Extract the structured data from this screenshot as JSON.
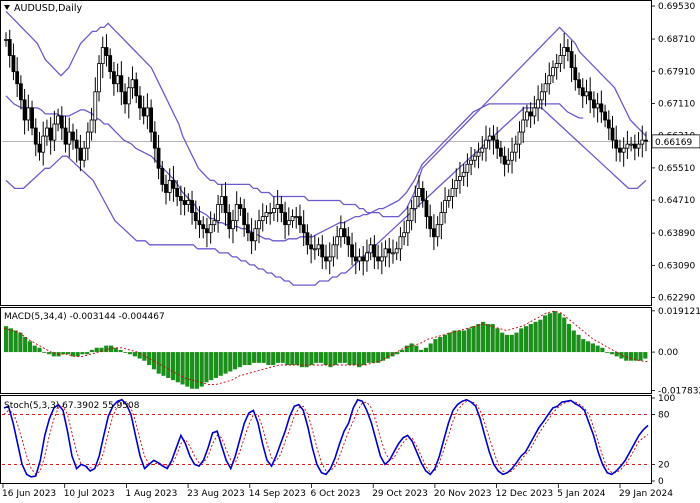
{
  "window": {
    "symbol_label": "AUDUSD,Daily",
    "menu_icon": "triangle-down-icon"
  },
  "colors": {
    "background": "#ffffff",
    "candle": "#000000",
    "bollinger": "#6a5acd",
    "macd_hist": "#1a8f1a",
    "macd_signal": "#cc0000",
    "stoch_main": "#0000cc",
    "stoch_signal": "#cc0000",
    "level_line": "#cc0000",
    "grid_separator": "#000000",
    "price_line": "#9a9a9a"
  },
  "price_panel": {
    "current_price_label": "0.66169",
    "current_price": 0.66169,
    "y_ticks": [
      "0.69530",
      "0.68710",
      "0.67910",
      "0.67110",
      "0.66310",
      "0.65510",
      "0.64710",
      "0.63890",
      "0.63090",
      "0.62290"
    ],
    "ylim": [
      0.6213,
      0.6963
    ]
  },
  "macd_panel": {
    "label": "MACD(5,34,4) -0.003144 -0.004467",
    "y_ticks": [
      "0.019121",
      "0.00",
      "-0.017832"
    ],
    "ylim": [
      -0.0185,
      0.0195
    ]
  },
  "stoch_panel": {
    "label": "Stoch(5,3,3) 67.3902 55.9508",
    "y_ticks": [
      "100",
      "80",
      "20",
      "0"
    ],
    "levels": [
      80,
      20
    ]
  },
  "x_ticks": [
    "16 Jun 2023",
    "10 Jul 2023",
    "1 Aug 2023",
    "23 Aug 2023",
    "14 Sep 2023",
    "6 Oct 2023",
    "29 Oct 2023",
    "20 Nov 2023",
    "12 Dec 2023",
    "5 Jan 2024",
    "29 Jan 2024"
  ],
  "chart_data": [
    {
      "type": "candlestick",
      "title": "AUDUSD,Daily",
      "indicators": [
        "Bollinger Bands"
      ],
      "x_start": "16 Jun 2023",
      "x_end": "29 Jan 2024",
      "close": [
        0.687,
        0.683,
        0.679,
        0.676,
        0.672,
        0.667,
        0.67,
        0.665,
        0.661,
        0.659,
        0.663,
        0.665,
        0.662,
        0.666,
        0.668,
        0.665,
        0.661,
        0.664,
        0.662,
        0.66,
        0.657,
        0.66,
        0.664,
        0.667,
        0.674,
        0.681,
        0.685,
        0.683,
        0.679,
        0.676,
        0.678,
        0.674,
        0.671,
        0.675,
        0.677,
        0.673,
        0.67,
        0.668,
        0.67,
        0.664,
        0.66,
        0.655,
        0.651,
        0.649,
        0.652,
        0.65,
        0.648,
        0.647,
        0.646,
        0.647,
        0.644,
        0.642,
        0.641,
        0.64,
        0.639,
        0.641,
        0.642,
        0.646,
        0.648,
        0.644,
        0.64,
        0.642,
        0.646,
        0.645,
        0.641,
        0.639,
        0.637,
        0.64,
        0.642,
        0.643,
        0.644,
        0.644,
        0.645,
        0.646,
        0.644,
        0.641,
        0.642,
        0.643,
        0.643,
        0.641,
        0.639,
        0.636,
        0.635,
        0.635,
        0.636,
        0.633,
        0.632,
        0.633,
        0.636,
        0.638,
        0.64,
        0.638,
        0.636,
        0.633,
        0.632,
        0.633,
        0.632,
        0.634,
        0.636,
        0.633,
        0.632,
        0.633,
        0.635,
        0.634,
        0.634,
        0.635,
        0.638,
        0.639,
        0.642,
        0.645,
        0.648,
        0.65,
        0.647,
        0.643,
        0.64,
        0.638,
        0.641,
        0.644,
        0.647,
        0.648,
        0.65,
        0.652,
        0.653,
        0.654,
        0.656,
        0.657,
        0.658,
        0.659,
        0.66,
        0.662,
        0.663,
        0.662,
        0.66,
        0.658,
        0.656,
        0.657,
        0.659,
        0.661,
        0.664,
        0.667,
        0.669,
        0.668,
        0.67,
        0.672,
        0.674,
        0.676,
        0.678,
        0.68,
        0.681,
        0.683,
        0.685,
        0.684,
        0.68,
        0.677,
        0.675,
        0.673,
        0.674,
        0.672,
        0.67,
        0.671,
        0.669,
        0.667,
        0.665,
        0.662,
        0.66,
        0.659,
        0.66,
        0.661,
        0.661,
        0.66,
        0.661,
        0.662,
        0.6617
      ],
      "bb_upper": [
        0.694,
        0.693,
        0.692,
        0.691,
        0.69,
        0.689,
        0.688,
        0.687,
        0.686,
        0.684,
        0.682,
        0.681,
        0.68,
        0.679,
        0.678,
        0.679,
        0.68,
        0.682,
        0.684,
        0.686,
        0.687,
        0.688,
        0.689,
        0.689,
        0.69,
        0.69,
        0.691,
        0.69,
        0.689,
        0.688,
        0.687,
        0.686,
        0.685,
        0.684,
        0.683,
        0.682,
        0.681,
        0.68,
        0.678,
        0.676,
        0.674,
        0.672,
        0.67,
        0.668,
        0.666,
        0.663,
        0.661,
        0.659,
        0.657,
        0.655,
        0.654,
        0.653,
        0.652,
        0.652,
        0.651,
        0.651,
        0.651,
        0.651,
        0.651,
        0.651,
        0.651,
        0.651,
        0.651,
        0.65,
        0.65,
        0.649,
        0.649,
        0.649,
        0.648,
        0.648,
        0.648,
        0.648,
        0.648,
        0.648,
        0.648,
        0.648,
        0.648,
        0.647,
        0.647,
        0.647,
        0.647,
        0.647,
        0.647,
        0.647,
        0.647,
        0.647,
        0.646,
        0.646,
        0.646,
        0.646,
        0.645,
        0.645,
        0.644,
        0.644,
        0.644,
        0.644,
        0.643,
        0.643,
        0.643,
        0.643,
        0.643,
        0.644,
        0.645,
        0.647,
        0.649,
        0.652,
        0.655,
        0.656,
        0.657,
        0.658,
        0.659,
        0.66,
        0.661,
        0.662,
        0.663,
        0.664,
        0.665,
        0.666,
        0.667,
        0.668,
        0.669,
        0.67,
        0.671,
        0.672,
        0.673,
        0.674,
        0.675,
        0.676,
        0.677,
        0.678,
        0.679,
        0.68,
        0.681,
        0.682,
        0.683,
        0.684,
        0.685,
        0.686,
        0.687,
        0.688,
        0.689,
        0.69,
        0.689,
        0.688,
        0.687,
        0.686,
        0.684,
        0.683,
        0.682,
        0.681,
        0.68,
        0.679,
        0.678,
        0.677,
        0.676,
        0.675,
        0.673,
        0.671,
        0.669,
        0.667,
        0.666,
        0.665,
        0.664,
        0.663
      ],
      "bb_lower": [
        0.652,
        0.651,
        0.65,
        0.65,
        0.65,
        0.651,
        0.652,
        0.653,
        0.654,
        0.655,
        0.655,
        0.656,
        0.657,
        0.658,
        0.658,
        0.657,
        0.656,
        0.655,
        0.654,
        0.653,
        0.652,
        0.65,
        0.648,
        0.646,
        0.644,
        0.642,
        0.641,
        0.64,
        0.639,
        0.638,
        0.637,
        0.637,
        0.637,
        0.636,
        0.636,
        0.636,
        0.636,
        0.636,
        0.636,
        0.636,
        0.636,
        0.636,
        0.636,
        0.636,
        0.635,
        0.635,
        0.635,
        0.635,
        0.635,
        0.634,
        0.634,
        0.634,
        0.633,
        0.633,
        0.632,
        0.632,
        0.631,
        0.631,
        0.63,
        0.63,
        0.629,
        0.629,
        0.628,
        0.628,
        0.627,
        0.627,
        0.626,
        0.626,
        0.626,
        0.626,
        0.626,
        0.626,
        0.627,
        0.627,
        0.627,
        0.628,
        0.628,
        0.629,
        0.629,
        0.63,
        0.631,
        0.632,
        0.633,
        0.634,
        0.635,
        0.636,
        0.637,
        0.638,
        0.639,
        0.64,
        0.641,
        0.642,
        0.643,
        0.644,
        0.645,
        0.646,
        0.647,
        0.648,
        0.649,
        0.65,
        0.651,
        0.652,
        0.653,
        0.654,
        0.655,
        0.656,
        0.657,
        0.658,
        0.659,
        0.66,
        0.661,
        0.662,
        0.663,
        0.664,
        0.665,
        0.666,
        0.667,
        0.668,
        0.669,
        0.67,
        0.67,
        0.67,
        0.67,
        0.67,
        0.669,
        0.668,
        0.667,
        0.666,
        0.665,
        0.664,
        0.663,
        0.662,
        0.661,
        0.66,
        0.659,
        0.658,
        0.657,
        0.656,
        0.655,
        0.654,
        0.653,
        0.652,
        0.651,
        0.65,
        0.65,
        0.65,
        0.651,
        0.652
      ]
    },
    {
      "type": "bar",
      "title": "MACD(5,34,4) -0.003144 -0.004467",
      "values": [
        0.012,
        0.011,
        0.01,
        0.009,
        0.007,
        0.005,
        0.003,
        0.002,
        0.0,
        -0.001,
        -0.002,
        -0.002,
        -0.001,
        -0.001,
        -0.002,
        -0.002,
        -0.001,
        -0.001,
        0.001,
        0.002,
        0.002,
        0.003,
        0.003,
        0.002,
        0.001,
        0.0,
        -0.001,
        -0.002,
        -0.003,
        -0.004,
        -0.006,
        -0.008,
        -0.01,
        -0.011,
        -0.012,
        -0.013,
        -0.014,
        -0.015,
        -0.016,
        -0.017,
        -0.017,
        -0.016,
        -0.014,
        -0.013,
        -0.012,
        -0.011,
        -0.01,
        -0.009,
        -0.008,
        -0.007,
        -0.006,
        -0.006,
        -0.005,
        -0.005,
        -0.005,
        -0.006,
        -0.006,
        -0.005,
        -0.005,
        -0.006,
        -0.006,
        -0.006,
        -0.007,
        -0.007,
        -0.006,
        -0.005,
        -0.005,
        -0.006,
        -0.007,
        -0.006,
        -0.005,
        -0.005,
        -0.006,
        -0.006,
        -0.007,
        -0.006,
        -0.005,
        -0.005,
        -0.005,
        -0.004,
        -0.003,
        -0.002,
        -0.001,
        0.001,
        0.003,
        0.004,
        0.003,
        0.001,
        0.002,
        0.004,
        0.006,
        0.007,
        0.008,
        0.009,
        0.01,
        0.01,
        0.01,
        0.011,
        0.012,
        0.013,
        0.014,
        0.013,
        0.013,
        0.011,
        0.009,
        0.008,
        0.008,
        0.009,
        0.011,
        0.012,
        0.013,
        0.014,
        0.015,
        0.017,
        0.018,
        0.019,
        0.018,
        0.016,
        0.013,
        0.01,
        0.008,
        0.006,
        0.005,
        0.004,
        0.003,
        0.002,
        0.0,
        -0.001,
        -0.002,
        -0.003,
        -0.004,
        -0.004,
        -0.004,
        -0.004,
        -0.003
      ],
      "series": [
        {
          "name": "signal",
          "values": [
            0.011,
            0.01,
            0.009,
            0.006,
            0.004,
            0.002,
            0.0,
            -0.001,
            -0.001,
            -0.002,
            -0.002,
            -0.001,
            0.0,
            0.001,
            0.002,
            0.002,
            0.001,
            0.0,
            -0.002,
            -0.004,
            -0.006,
            -0.008,
            -0.01,
            -0.012,
            -0.013,
            -0.014,
            -0.015,
            -0.015,
            -0.014,
            -0.013,
            -0.011,
            -0.01,
            -0.009,
            -0.008,
            -0.007,
            -0.006,
            -0.006,
            -0.006,
            -0.006,
            -0.006,
            -0.006,
            -0.006,
            -0.006,
            -0.006,
            -0.006,
            -0.006,
            -0.006,
            -0.005,
            -0.004,
            -0.002,
            0.0,
            0.002,
            0.003,
            0.004,
            0.006,
            0.007,
            0.008,
            0.009,
            0.01,
            0.011,
            0.012,
            0.013,
            0.012,
            0.011,
            0.01,
            0.011,
            0.012,
            0.014,
            0.016,
            0.018,
            0.019,
            0.018,
            0.015,
            0.012,
            0.009,
            0.006,
            0.004,
            0.002,
            0.0,
            -0.002,
            -0.003,
            -0.004,
            -0.0045
          ]
        }
      ],
      "ylim": [
        -0.0185,
        0.0195
      ]
    },
    {
      "type": "line",
      "title": "Stoch(5,3,3) 67.3902 55.9508",
      "series": [
        {
          "name": "main",
          "values": [
            88,
            90,
            70,
            45,
            20,
            8,
            5,
            6,
            25,
            55,
            75,
            88,
            92,
            85,
            60,
            30,
            15,
            20,
            18,
            12,
            15,
            30,
            55,
            78,
            90,
            96,
            98,
            92,
            80,
            55,
            30,
            15,
            20,
            25,
            22,
            18,
            15,
            25,
            40,
            55,
            45,
            30,
            20,
            18,
            25,
            40,
            58,
            60,
            42,
            25,
            15,
            30,
            50,
            70,
            82,
            85,
            70,
            45,
            25,
            18,
            30,
            45,
            60,
            78,
            90,
            92,
            85,
            65,
            40,
            20,
            10,
            8,
            15,
            28,
            45,
            60,
            70,
            88,
            98,
            96,
            85,
            70,
            50,
            30,
            20,
            25,
            35,
            45,
            52,
            55,
            48,
            35,
            22,
            12,
            8,
            15,
            30,
            50,
            70,
            85,
            92,
            96,
            98,
            95,
            90,
            75,
            55,
            35,
            20,
            12,
            8,
            10,
            15,
            22,
            30,
            35,
            45,
            55,
            65,
            72,
            80,
            88,
            90,
            95,
            96,
            97,
            93,
            90,
            85,
            70,
            55,
            35,
            20,
            10,
            8,
            12,
            18,
            25,
            35,
            45,
            55,
            62,
            67
          ]
        },
        {
          "name": "signal",
          "values": [
            80,
            85,
            82,
            68,
            50,
            30,
            15,
            8,
            12,
            30,
            55,
            75,
            88,
            90,
            80,
            58,
            35,
            20,
            18,
            16,
            15,
            20,
            35,
            58,
            78,
            90,
            95,
            95,
            88,
            72,
            50,
            30,
            20,
            20,
            22,
            20,
            18,
            20,
            30,
            45,
            50,
            42,
            30,
            22,
            22,
            30,
            45,
            55,
            52,
            38,
            25,
            22,
            35,
            52,
            68,
            80,
            80,
            65,
            45,
            28,
            24,
            32,
            48,
            62,
            78,
            88,
            90,
            80,
            62,
            40,
            22,
            12,
            12,
            18,
            30,
            45,
            60,
            72,
            85,
            94,
            95,
            88,
            72,
            52,
            35,
            25,
            28,
            38,
            46,
            52,
            52,
            42,
            30,
            18,
            10,
            12,
            22,
            38,
            55,
            72,
            85,
            92,
            96,
            96,
            93,
            85,
            70,
            52,
            35,
            20,
            12,
            10,
            12,
            18,
            25,
            32,
            38,
            48,
            58,
            66,
            74,
            82,
            88,
            92,
            95,
            96,
            95,
            92,
            88,
            80,
            65,
            48,
            30,
            16,
            10,
            10,
            14,
            20,
            28,
            38,
            48,
            52,
            56
          ]
        }
      ],
      "ylim": [
        0,
        100
      ],
      "levels": [
        80,
        20
      ]
    }
  ]
}
